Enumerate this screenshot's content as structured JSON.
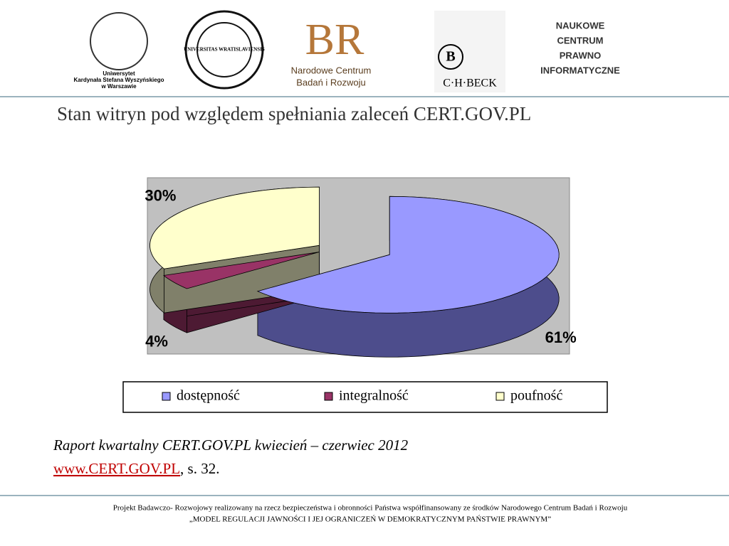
{
  "header": {
    "logo1_lines": [
      "Uniwersytet",
      "Kardynała Stefana Wyszyńskiego",
      "w Warszawie"
    ],
    "logo2": "UNIVERSITAS WRATISLAVIENSIS",
    "logo3_mark": "BR",
    "logo3_lines": [
      "Narodowe Centrum",
      "Badań i Rozwoju"
    ],
    "logo4_mark": "B",
    "logo4": "C·H·BECK",
    "logo5_lines": [
      "NAUKOWE",
      "CENTRUM",
      "PRAWNO",
      "INFORMATYCZNE"
    ]
  },
  "chart_data": {
    "type": "pie3d",
    "title": "Stan witryn pod względem spełniania zaleceń CERT.GOV.PL",
    "categories": [
      "dostępność",
      "integralność",
      "poufność"
    ],
    "values": [
      61,
      4,
      30
    ],
    "value_labels": [
      "61%",
      "4%",
      "30%"
    ],
    "colors": [
      "#9999ff",
      "#993366",
      "#ffffcc"
    ],
    "side_colors": [
      "#4d4d8c",
      "#4d1a33",
      "#80806a"
    ],
    "legend": "bottom"
  },
  "source": {
    "text": "Raport kwartalny CERT.GOV.PL kwiecień – czerwiec 2012",
    "link": "www.CERT.GOV.PL",
    "rest": ", s. 32."
  },
  "footer": {
    "line1": "Projekt Badawczo- Rozwojowy realizowany na rzecz bezpieczeństwa i obronności Państwa współfinansowany ze środków Narodowego Centrum Badań i Rozwoju",
    "line2": "„MODEL REGULACJI JAWNOŚCI I JEJ OGRANICZEŃ W DEMOKRATYCZNYM PAŃSTWIE PRAWNYM”"
  }
}
